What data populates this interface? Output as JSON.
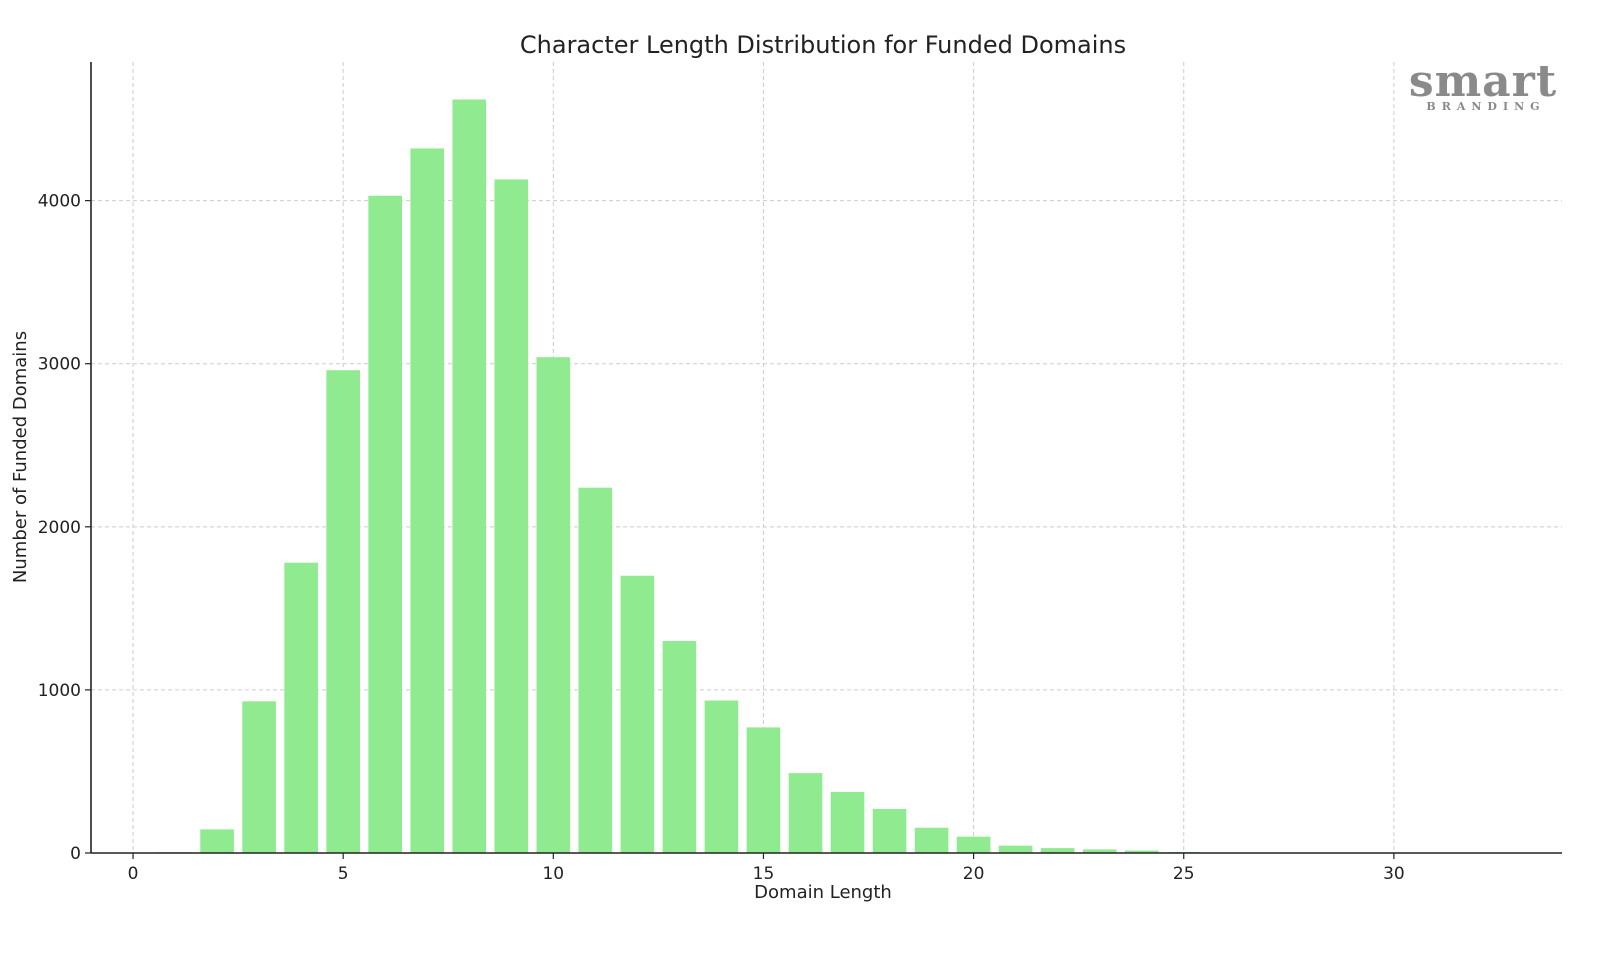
{
  "chart_data": {
    "type": "bar",
    "title": "Character Length Distribution for Funded Domains",
    "xlabel": "Domain Length",
    "ylabel": "Number of Funded Domains",
    "xlim": [
      -1,
      34
    ],
    "ylim": [
      0,
      4850
    ],
    "x_ticks": [
      0,
      5,
      10,
      15,
      20,
      25,
      30
    ],
    "y_ticks": [
      0,
      1000,
      2000,
      3000,
      4000
    ],
    "grid": true,
    "bar_color": "#90ea8f",
    "x": [
      1,
      2,
      3,
      4,
      5,
      6,
      7,
      8,
      9,
      10,
      11,
      12,
      13,
      14,
      15,
      16,
      17,
      18,
      19,
      20,
      21,
      22,
      23,
      24,
      25,
      26
    ],
    "values": [
      5,
      145,
      930,
      1780,
      2960,
      4030,
      4320,
      4620,
      4130,
      3040,
      2240,
      1700,
      1300,
      935,
      770,
      490,
      375,
      270,
      155,
      100,
      45,
      30,
      22,
      15,
      6,
      3
    ]
  },
  "watermark": {
    "main": "smart",
    "sub": "BRANDING"
  }
}
